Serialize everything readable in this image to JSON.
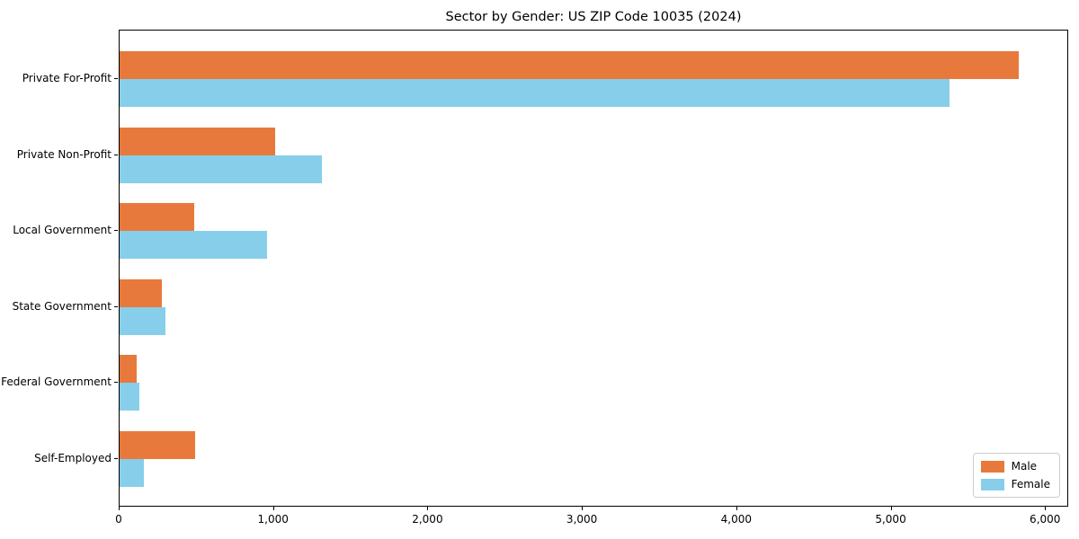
{
  "chart_data": {
    "type": "bar",
    "orientation": "horizontal",
    "title": "Sector by Gender: US ZIP Code 10035 (2024)",
    "categories": [
      "Private For-Profit",
      "Private Non-Profit",
      "Local Government",
      "State Government",
      "Federal Government",
      "Self-Employed"
    ],
    "series": [
      {
        "name": "Male",
        "color": "#e8793c",
        "values": [
          5835,
          1010,
          485,
          275,
          110,
          490
        ]
      },
      {
        "name": "Female",
        "color": "#87ceeb",
        "values": [
          5385,
          1315,
          955,
          300,
          130,
          160
        ]
      }
    ],
    "xlabel": "",
    "ylabel": "",
    "xlim": [
      0,
      6150
    ],
    "x_ticks": [
      0,
      1000,
      2000,
      3000,
      4000,
      5000,
      6000
    ],
    "x_tick_labels": [
      "0",
      "1,000",
      "2,000",
      "3,000",
      "4,000",
      "5,000",
      "6,000"
    ],
    "legend_position": "lower right",
    "grid": false
  },
  "legend": {
    "items": [
      {
        "label": "Male",
        "color": "#e8793c"
      },
      {
        "label": "Female",
        "color": "#87ceeb"
      }
    ]
  }
}
